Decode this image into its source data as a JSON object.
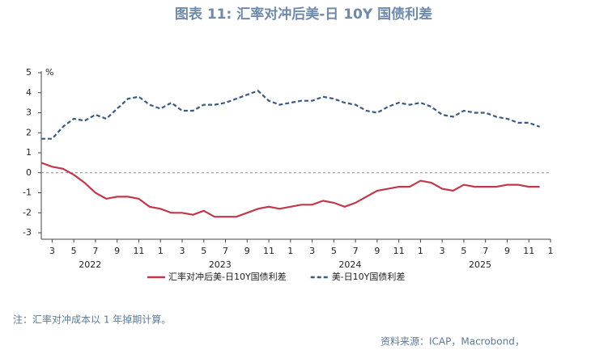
{
  "chart_data": {
    "type": "line",
    "title": "图表 11: 汇率对冲后美-日 10Y 国债利差",
    "y_unit": "%",
    "note": "注：汇率对冲成本以 1 年掉期计算。",
    "source": "资料来源：ICAP，Macrobond，",
    "x": [
      "2022-02",
      "2022-03",
      "2022-04",
      "2022-05",
      "2022-06",
      "2022-07",
      "2022-08",
      "2022-09",
      "2022-10",
      "2022-11",
      "2022-12",
      "2023-01",
      "2023-02",
      "2023-03",
      "2023-04",
      "2023-05",
      "2023-06",
      "2023-07",
      "2023-08",
      "2023-09",
      "2023-10",
      "2023-11",
      "2023-12",
      "2024-01",
      "2024-02",
      "2024-03",
      "2024-04",
      "2024-05",
      "2024-06",
      "2024-07",
      "2024-08",
      "2024-09",
      "2024-10",
      "2024-11",
      "2024-12",
      "2025-01",
      "2025-02",
      "2025-03",
      "2025-04",
      "2025-05",
      "2025-06",
      "2025-07",
      "2025-08",
      "2025-09",
      "2025-10",
      "2025-11",
      "2025-12"
    ],
    "series": [
      {
        "name": "汇率对冲后美-日10Y国债利差",
        "color": "#c0394b",
        "dash": false,
        "values": [
          0.5,
          0.3,
          0.2,
          -0.1,
          -0.5,
          -1.0,
          -1.3,
          -1.2,
          -1.2,
          -1.3,
          -1.7,
          -1.8,
          -2.0,
          -2.0,
          -2.1,
          -1.9,
          -2.2,
          -2.2,
          -2.2,
          -2.0,
          -1.8,
          -1.7,
          -1.8,
          -1.7,
          -1.6,
          -1.6,
          -1.4,
          -1.5,
          -1.7,
          -1.5,
          -1.2,
          -0.9,
          -0.8,
          -0.7,
          -0.7,
          -0.4,
          -0.5,
          -0.8,
          -0.9,
          -0.6,
          -0.7,
          -0.7,
          -0.7,
          -0.6,
          -0.6,
          -0.7,
          -0.7
        ]
      },
      {
        "name": "美-日10Y国债利差",
        "color": "#3d5a80",
        "dash": true,
        "values": [
          1.7,
          1.7,
          2.3,
          2.7,
          2.6,
          2.9,
          2.7,
          3.2,
          3.7,
          3.8,
          3.4,
          3.2,
          3.5,
          3.1,
          3.1,
          3.4,
          3.4,
          3.5,
          3.7,
          3.9,
          4.1,
          3.6,
          3.4,
          3.5,
          3.6,
          3.6,
          3.8,
          3.7,
          3.5,
          3.4,
          3.1,
          3.0,
          3.3,
          3.5,
          3.4,
          3.5,
          3.3,
          2.9,
          2.8,
          3.1,
          3.0,
          3.0,
          2.8,
          2.7,
          2.5,
          2.5,
          2.3
        ]
      }
    ],
    "xlim": [
      "2022-02",
      "2026-01"
    ],
    "xticks": [
      {
        "value": "2022-03",
        "label": "3"
      },
      {
        "value": "2022-05",
        "label": "5"
      },
      {
        "value": "2022-07",
        "label": "7"
      },
      {
        "value": "2022-09",
        "label": "9"
      },
      {
        "value": "2022-11",
        "label": "11"
      },
      {
        "value": "2023-01",
        "label": "1"
      },
      {
        "value": "2023-03",
        "label": "3"
      },
      {
        "value": "2023-05",
        "label": "5"
      },
      {
        "value": "2023-07",
        "label": "7"
      },
      {
        "value": "2023-09",
        "label": "9"
      },
      {
        "value": "2023-11",
        "label": "11"
      },
      {
        "value": "2024-01",
        "label": "1"
      },
      {
        "value": "2024-03",
        "label": "3"
      },
      {
        "value": "2024-05",
        "label": "5"
      },
      {
        "value": "2024-07",
        "label": "7"
      },
      {
        "value": "2024-09",
        "label": "9"
      },
      {
        "value": "2024-11",
        "label": "11"
      },
      {
        "value": "2025-01",
        "label": "1"
      },
      {
        "value": "2025-03",
        "label": "3"
      },
      {
        "value": "2025-05",
        "label": "5"
      },
      {
        "value": "2025-07",
        "label": "7"
      },
      {
        "value": "2025-09",
        "label": "9"
      },
      {
        "value": "2025-11",
        "label": "11"
      },
      {
        "value": "2026-01",
        "label": "1"
      }
    ],
    "x_groups": [
      "2022",
      "2023",
      "2024",
      "2025"
    ],
    "ylim": [
      -3,
      5
    ],
    "yticks": [
      -3,
      -2,
      -1,
      0,
      1,
      2,
      3,
      4,
      5
    ],
    "zero_line": true
  }
}
